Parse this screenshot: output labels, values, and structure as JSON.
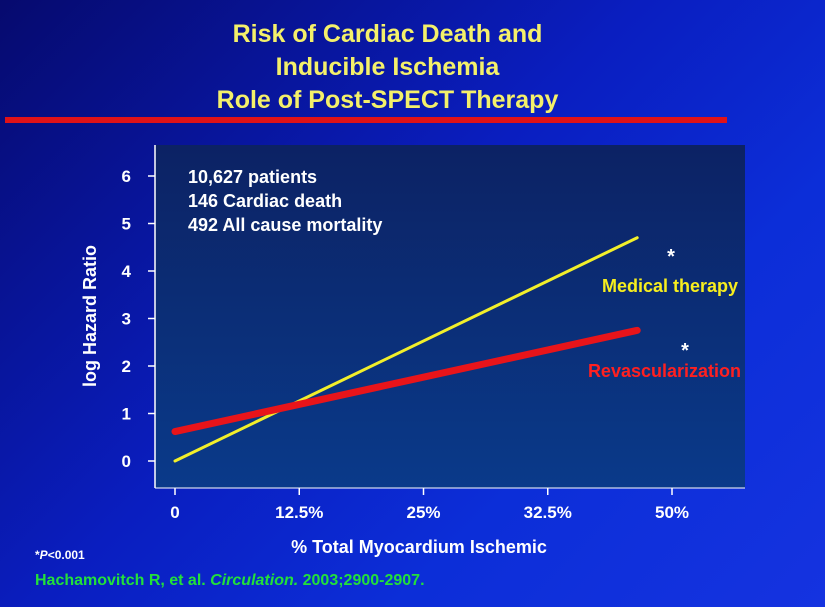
{
  "slide": {
    "title_lines": [
      "Risk of Cardiac Death and",
      "Inducible Ischemia",
      "Role of Post-SPECT Therapy"
    ],
    "footnote_prefix": "*",
    "footnote_p": "P",
    "footnote_rest": "<0.001",
    "citation_authors": "Hachamovitch R, et al. ",
    "citation_journal": "Circulation.",
    "citation_ref": " 2003;2900-2907.",
    "colors": {
      "title": "#f4f06a",
      "rule": "#e01218",
      "citation": "#22e03a",
      "plot_bg": "#0b2670"
    }
  },
  "chart_data": {
    "type": "line",
    "xlabel": "% Total Myocardium Ischemic",
    "ylabel": "log Hazard Ratio",
    "x_tick_labels": [
      "0",
      "12.5%",
      "25%",
      "32.5%",
      "50%"
    ],
    "y_tick_labels": [
      "0",
      "1",
      "2",
      "3",
      "4",
      "5",
      "6"
    ],
    "xlim": [
      0,
      50
    ],
    "ylim": [
      0,
      6
    ],
    "annotations": [
      "10,627 patients",
      "146  Cardiac death",
      "492  All cause mortality"
    ],
    "series": [
      {
        "name": "Medical  therapy",
        "marker": "*",
        "color": "#f2ef2a",
        "x": [
          0,
          46.5
        ],
        "y": [
          0.0,
          4.7
        ]
      },
      {
        "name": "Revascularization",
        "marker": "*",
        "color": "#e8141a",
        "x": [
          0,
          46.5
        ],
        "y": [
          0.62,
          2.75
        ]
      }
    ]
  }
}
